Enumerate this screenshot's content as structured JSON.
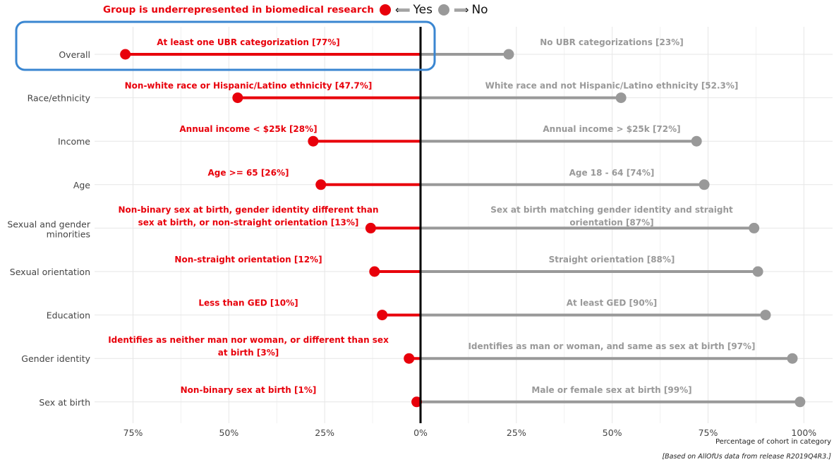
{
  "legend": {
    "title": "Group is underrepresented in biomedical research",
    "yes_label": "Yes",
    "no_label": "No",
    "yes_arrow": "⟸",
    "no_arrow": "⟹",
    "yes_color": "#e8000b",
    "no_color": "#999999"
  },
  "caption": "[Based on AllOfUs data from release R2019Q4R3.]",
  "chart_data": {
    "type": "diverging lollipop",
    "xlabel": "Percentage of cohort in category",
    "ylabel": "",
    "xlim": [
      -85,
      107
    ],
    "xticks": [
      -75,
      -50,
      -25,
      0,
      25,
      50,
      75,
      100
    ],
    "xtick_labels": [
      "75%",
      "50%",
      "25%",
      "0%",
      "25%",
      "50%",
      "75%",
      "100%"
    ],
    "grid": true,
    "highlight_box_category": "Overall",
    "highlight_color": "#3a86d1",
    "categories": [
      {
        "label": "Overall",
        "yes": 77,
        "no": 23,
        "yes_text": [
          "At least one UBR categorization [77%]"
        ],
        "no_text": [
          "No UBR categorizations [23%]"
        ]
      },
      {
        "label": "Race/ethnicity",
        "yes": 47.7,
        "no": 52.3,
        "yes_text": [
          "Non-white race or Hispanic/Latino ethnicity [47.7%]"
        ],
        "no_text": [
          "White race and not Hispanic/Latino ethnicity [52.3%]"
        ]
      },
      {
        "label": "Income",
        "yes": 28,
        "no": 72,
        "yes_text": [
          "Annual income < $25k [28%]"
        ],
        "no_text": [
          "Annual income > $25k [72%]"
        ]
      },
      {
        "label": "Age",
        "yes": 26,
        "no": 74,
        "yes_text": [
          "Age >= 65 [26%]"
        ],
        "no_text": [
          "Age 18 - 64 [74%]"
        ]
      },
      {
        "label": "Sexual and gender minorities",
        "yes": 13,
        "no": 87,
        "yes_text": [
          "Non-binary sex at birth, gender identity different than",
          "sex at birth, or non-straight orientation [13%]"
        ],
        "no_text": [
          "Sex at birth matching gender identity and straight",
          "orientation [87%]"
        ]
      },
      {
        "label": "Sexual orientation",
        "yes": 12,
        "no": 88,
        "yes_text": [
          "Non-straight orientation [12%]"
        ],
        "no_text": [
          "Straight orientation [88%]"
        ]
      },
      {
        "label": "Education",
        "yes": 10,
        "no": 90,
        "yes_text": [
          "Less than GED [10%]"
        ],
        "no_text": [
          "At least GED [90%]"
        ]
      },
      {
        "label": "Gender identity",
        "yes": 3,
        "no": 97,
        "yes_text": [
          "Identifies as neither man nor woman, or different than sex",
          "at birth [3%]"
        ],
        "no_text": [
          "Identifies as man or woman, and same as sex at birth [97%]"
        ]
      },
      {
        "label": "Sex at birth",
        "yes": 1,
        "no": 99,
        "yes_text": [
          "Non-binary sex at birth [1%]"
        ],
        "no_text": [
          "Male or female sex at birth [99%]"
        ]
      }
    ]
  }
}
